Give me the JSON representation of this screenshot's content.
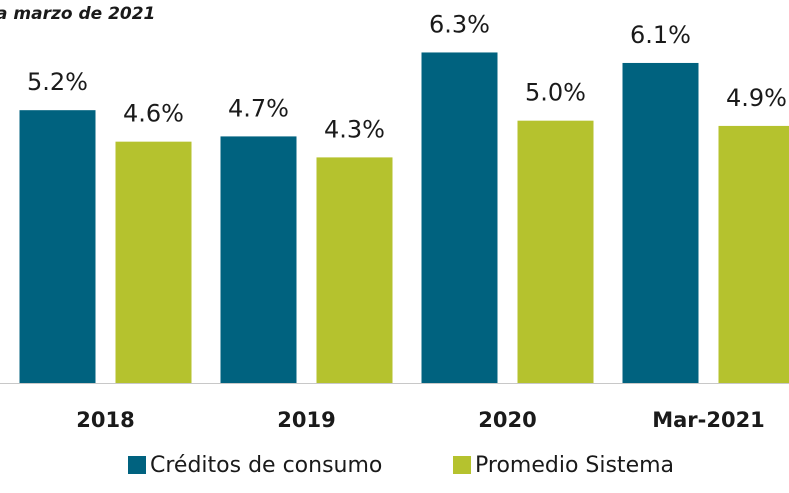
{
  "chart_data": {
    "type": "bar",
    "subtitle": "a marzo de 2021",
    "categories": [
      "2018",
      "2019",
      "2020",
      "Mar-2021"
    ],
    "series": [
      {
        "name": "Créditos de consumo",
        "color": "#00627f",
        "values": [
          5.2,
          4.7,
          6.3,
          6.1
        ],
        "value_labels": [
          "5.2%",
          "4.7%",
          "6.3%",
          "6.1%"
        ]
      },
      {
        "name": "Promedio Sistema",
        "color": "#b5c22e",
        "values": [
          4.6,
          4.3,
          5.0,
          4.9
        ],
        "value_labels": [
          "4.6%",
          "4.3%",
          "5.0%",
          "4.9%"
        ]
      }
    ],
    "ylim": [
      0,
      7.3
    ]
  }
}
